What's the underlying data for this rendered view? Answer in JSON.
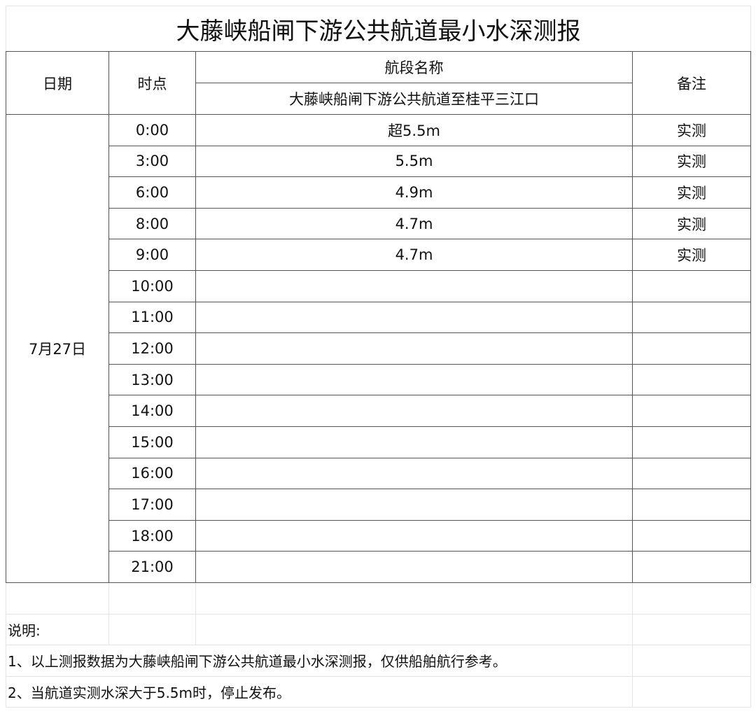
{
  "title": "大藤峡船闸下游公共航道最小水深测报",
  "headers": {
    "date": "日期",
    "time": "时点",
    "section_name": "航段名称",
    "section": "大藤峡船闸下游公共航道至桂平三江口",
    "remark": "备注"
  },
  "date": "7月27日",
  "rows": [
    {
      "time": "0:00",
      "depth": "超5.5m",
      "remark": "实测"
    },
    {
      "time": "3:00",
      "depth": "5.5m",
      "remark": "实测"
    },
    {
      "time": "6:00",
      "depth": "4.9m",
      "remark": "实测"
    },
    {
      "time": "8:00",
      "depth": "4.7m",
      "remark": "实测"
    },
    {
      "time": "9:00",
      "depth": "4.7m",
      "remark": "实测"
    },
    {
      "time": "10:00",
      "depth": "",
      "remark": ""
    },
    {
      "time": "11:00",
      "depth": "",
      "remark": ""
    },
    {
      "time": "12:00",
      "depth": "",
      "remark": ""
    },
    {
      "time": "13:00",
      "depth": "",
      "remark": ""
    },
    {
      "time": "14:00",
      "depth": "",
      "remark": ""
    },
    {
      "time": "15:00",
      "depth": "",
      "remark": ""
    },
    {
      "time": "16:00",
      "depth": "",
      "remark": ""
    },
    {
      "time": "17:00",
      "depth": "",
      "remark": ""
    },
    {
      "time": "18:00",
      "depth": "",
      "remark": ""
    },
    {
      "time": "21:00",
      "depth": "",
      "remark": ""
    }
  ],
  "notes": {
    "heading": "说明:",
    "items": [
      "1、以上测报数据为大藤峡船闸下游公共航道最小水深测报，仅供船舶航行参考。",
      "2、当航道实测水深大于5.5m时，停止发布。"
    ]
  }
}
